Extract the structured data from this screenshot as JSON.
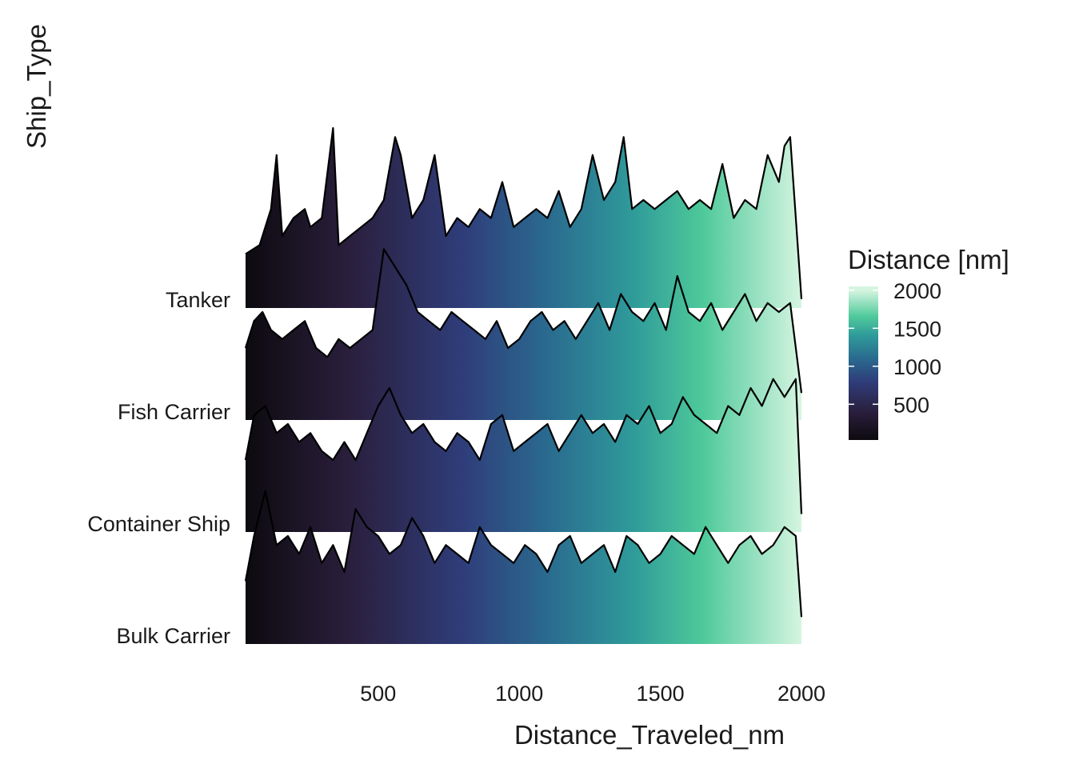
{
  "chart_data": {
    "type": "ridgeline",
    "xlabel": "Distance_Traveled_nm",
    "ylabel": "Ship_Type",
    "xlim": [
      30,
      2000
    ],
    "x_ticks": [
      500,
      1000,
      1500,
      2000
    ],
    "x_tick_labels": [
      "500",
      "1000",
      "1500",
      "2000"
    ],
    "categories": [
      "Tanker",
      "Fish Carrier",
      "Container Ship",
      "Bulk Carrier"
    ],
    "grid": false,
    "series": [
      {
        "label": "Tanker",
        "x": [
          30,
          80,
          120,
          140,
          160,
          200,
          240,
          260,
          300,
          340,
          360,
          400,
          440,
          480,
          520,
          560,
          580,
          620,
          660,
          700,
          740,
          780,
          820,
          860,
          900,
          940,
          980,
          1020,
          1060,
          1100,
          1140,
          1180,
          1220,
          1260,
          1300,
          1340,
          1370,
          1400,
          1440,
          1480,
          1520,
          1560,
          1600,
          1640,
          1680,
          1720,
          1760,
          1800,
          1840,
          1880,
          1920,
          1940,
          1960,
          2000
        ],
        "y": [
          0.3,
          0.35,
          0.55,
          0.85,
          0.4,
          0.5,
          0.55,
          0.45,
          0.5,
          1.0,
          0.35,
          0.4,
          0.45,
          0.5,
          0.6,
          0.95,
          0.85,
          0.5,
          0.6,
          0.85,
          0.4,
          0.5,
          0.45,
          0.55,
          0.5,
          0.7,
          0.45,
          0.5,
          0.55,
          0.5,
          0.65,
          0.45,
          0.55,
          0.85,
          0.6,
          0.7,
          0.95,
          0.55,
          0.6,
          0.55,
          0.6,
          0.65,
          0.55,
          0.6,
          0.55,
          0.8,
          0.5,
          0.6,
          0.55,
          0.85,
          0.7,
          0.9,
          0.95,
          0.05
        ]
      },
      {
        "label": "Fish Carrier",
        "x": [
          30,
          60,
          90,
          120,
          160,
          200,
          240,
          280,
          320,
          360,
          400,
          440,
          480,
          520,
          560,
          600,
          640,
          680,
          720,
          760,
          800,
          840,
          880,
          920,
          960,
          1000,
          1040,
          1080,
          1120,
          1160,
          1200,
          1240,
          1280,
          1320,
          1360,
          1400,
          1440,
          1480,
          1520,
          1560,
          1600,
          1640,
          1680,
          1720,
          1760,
          1800,
          1840,
          1880,
          1920,
          1960,
          2000
        ],
        "y": [
          0.4,
          0.55,
          0.6,
          0.5,
          0.45,
          0.5,
          0.55,
          0.4,
          0.35,
          0.45,
          0.4,
          0.45,
          0.5,
          0.95,
          0.85,
          0.75,
          0.6,
          0.55,
          0.5,
          0.6,
          0.55,
          0.5,
          0.45,
          0.55,
          0.4,
          0.45,
          0.55,
          0.6,
          0.5,
          0.55,
          0.45,
          0.55,
          0.65,
          0.5,
          0.7,
          0.6,
          0.55,
          0.65,
          0.5,
          0.8,
          0.6,
          0.55,
          0.65,
          0.5,
          0.6,
          0.7,
          0.55,
          0.65,
          0.6,
          0.65,
          0.15
        ]
      },
      {
        "label": "Container Ship",
        "x": [
          30,
          60,
          100,
          140,
          180,
          220,
          260,
          300,
          340,
          380,
          420,
          460,
          500,
          540,
          580,
          620,
          660,
          700,
          740,
          780,
          820,
          860,
          900,
          940,
          980,
          1020,
          1060,
          1100,
          1140,
          1180,
          1220,
          1260,
          1300,
          1340,
          1380,
          1420,
          1460,
          1500,
          1540,
          1580,
          1620,
          1660,
          1700,
          1740,
          1780,
          1820,
          1860,
          1900,
          1940,
          1980,
          2000
        ],
        "y": [
          0.4,
          0.65,
          0.7,
          0.55,
          0.6,
          0.5,
          0.55,
          0.45,
          0.4,
          0.5,
          0.4,
          0.55,
          0.7,
          0.8,
          0.65,
          0.55,
          0.6,
          0.5,
          0.45,
          0.55,
          0.5,
          0.4,
          0.6,
          0.65,
          0.45,
          0.5,
          0.55,
          0.6,
          0.45,
          0.55,
          0.65,
          0.55,
          0.6,
          0.5,
          0.65,
          0.6,
          0.7,
          0.55,
          0.6,
          0.75,
          0.65,
          0.6,
          0.55,
          0.7,
          0.65,
          0.8,
          0.7,
          0.85,
          0.75,
          0.85,
          0.1
        ]
      },
      {
        "label": "Bulk Carrier",
        "x": [
          30,
          60,
          100,
          140,
          180,
          220,
          260,
          300,
          340,
          380,
          420,
          460,
          500,
          540,
          580,
          620,
          660,
          700,
          740,
          780,
          820,
          860,
          900,
          940,
          980,
          1020,
          1060,
          1100,
          1140,
          1180,
          1220,
          1260,
          1300,
          1340,
          1380,
          1420,
          1460,
          1500,
          1540,
          1580,
          1620,
          1660,
          1700,
          1740,
          1780,
          1820,
          1860,
          1900,
          1940,
          1980,
          2000
        ],
        "y": [
          0.35,
          0.6,
          0.85,
          0.55,
          0.6,
          0.5,
          0.65,
          0.45,
          0.55,
          0.4,
          0.75,
          0.65,
          0.6,
          0.5,
          0.55,
          0.7,
          0.6,
          0.45,
          0.55,
          0.5,
          0.45,
          0.65,
          0.55,
          0.5,
          0.45,
          0.55,
          0.5,
          0.4,
          0.55,
          0.6,
          0.45,
          0.5,
          0.55,
          0.4,
          0.6,
          0.55,
          0.45,
          0.5,
          0.6,
          0.55,
          0.5,
          0.65,
          0.55,
          0.45,
          0.55,
          0.6,
          0.5,
          0.55,
          0.65,
          0.6,
          0.15
        ]
      }
    ],
    "fill_gradient": {
      "variable": "x",
      "colors": [
        "#0d0a0f",
        "#2a1f3d",
        "#2f3d7a",
        "#2a6a8f",
        "#2f9a9a",
        "#4ec99a",
        "#d5f5e0"
      ],
      "stops": [
        30,
        400,
        800,
        1100,
        1400,
        1650,
        2000
      ]
    },
    "legend": {
      "title": "Distance [nm]",
      "placement": "right",
      "min": 30,
      "max": 2050,
      "ticks": [
        500,
        1000,
        1500,
        2000
      ],
      "tick_labels": [
        "500",
        "1000",
        "1500",
        "2000"
      ]
    },
    "outline_color": "#000000"
  }
}
